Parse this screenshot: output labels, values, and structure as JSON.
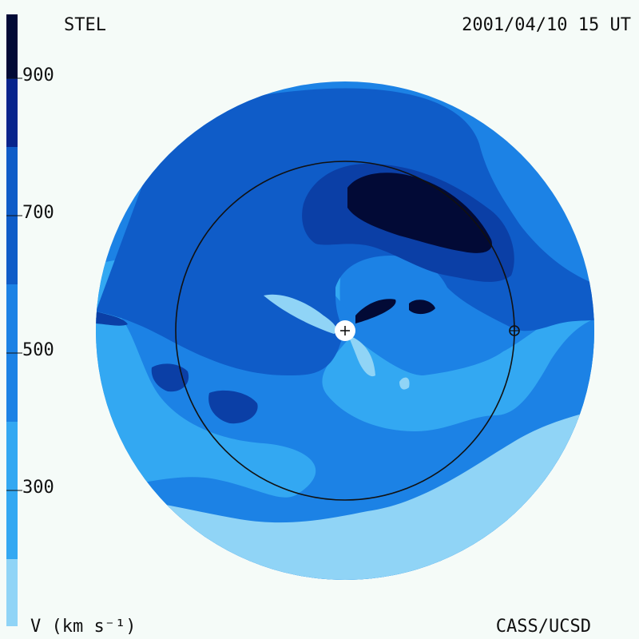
{
  "header": {
    "left_label": "STEL",
    "right_label": "2001/04/10 15 UT"
  },
  "footer": {
    "units_label": "V (km s⁻¹)",
    "credit": "CASS/UCSD"
  },
  "colorbar": {
    "ticks": [
      "900",
      "700",
      "500",
      "300"
    ],
    "colors": [
      "#90d4f6",
      "#33a8f2",
      "#1c82e5",
      "#0f5cc8",
      "#0b3fa6",
      "#07248c",
      "#04106a",
      "#020a36"
    ]
  },
  "map": {
    "center_marker": "sun-plus-icon",
    "earth_marker": "earth-icon",
    "background_color": "#f5fbf8",
    "orbit_color": "#111111"
  }
}
